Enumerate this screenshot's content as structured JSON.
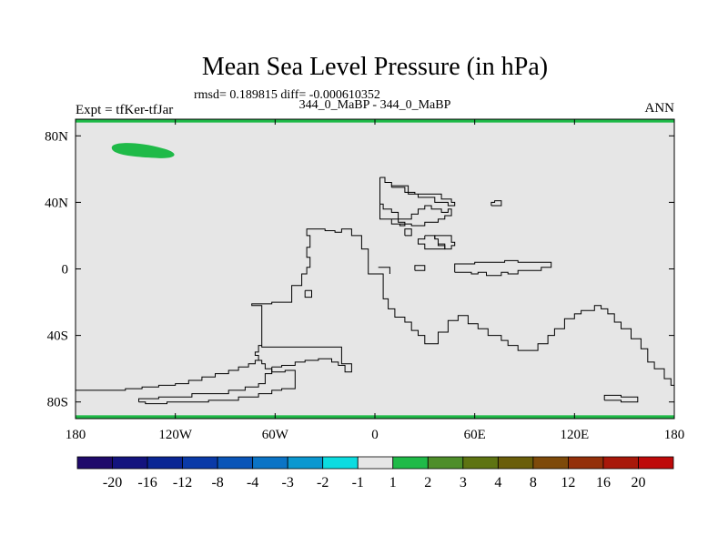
{
  "chart_data": {
    "type": "heatmap",
    "title": "Mean Sea Level Pressure (in hPa)",
    "subtitle": "rmsd= 0.189815 diff= -0.000610352",
    "left_label": "Expt = tfKer-tfJar",
    "center_label": "344_0_MaBP - 344_0_MaBP",
    "right_label": "ANN",
    "xlim": [
      -180,
      180
    ],
    "ylim": [
      -90,
      90
    ],
    "x_ticks": [
      {
        "value": -180,
        "label": "180"
      },
      {
        "value": -120,
        "label": "120W"
      },
      {
        "value": -60,
        "label": "60W"
      },
      {
        "value": 0,
        "label": "0"
      },
      {
        "value": 60,
        "label": "60E"
      },
      {
        "value": 120,
        "label": "120E"
      },
      {
        "value": 180,
        "label": "180"
      }
    ],
    "y_ticks": [
      {
        "value": 80,
        "label": "80N"
      },
      {
        "value": 40,
        "label": "40N"
      },
      {
        "value": 0,
        "label": "0"
      },
      {
        "value": -40,
        "label": "40S"
      },
      {
        "value": -80,
        "label": "80S"
      }
    ],
    "field_background_color": "#e6e6e6",
    "colorbar": {
      "colors": [
        "#1f0a6b",
        "#13137e",
        "#0a2694",
        "#0a3aa8",
        "#0a55b8",
        "#0b74c6",
        "#0b98d0",
        "#0cdce0",
        "#e6e6e6",
        "#1fba48",
        "#4e8e2a",
        "#5e7412",
        "#6a5e0a",
        "#7e4a0a",
        "#94300a",
        "#a8180a",
        "#be0a0a"
      ],
      "labels": [
        "-20",
        "-16",
        "-12",
        "-8",
        "-4",
        "-3",
        "-2",
        "-1",
        "1",
        "2",
        "3",
        "4",
        "8",
        "12",
        "16",
        "20"
      ]
    },
    "anomalies": [
      {
        "region": "north-pole-band",
        "value_range": "1 to 2",
        "color": "#1fba48",
        "lat_range": [
          88,
          90
        ],
        "lon_range": [
          -180,
          180
        ]
      },
      {
        "region": "arctic-blob",
        "value_range": "1 to 2",
        "color": "#1fba48",
        "lat_center": 71,
        "lon_center": -138
      },
      {
        "region": "south-pole-band",
        "value_range": "1 to 2",
        "color": "#1fba48",
        "lat_range": [
          -90,
          -88
        ],
        "lon_range": [
          -180,
          180
        ]
      }
    ],
    "coastlines": [
      [
        [
          -180,
          -73
        ],
        [
          -150,
          -73
        ],
        [
          -150,
          -72
        ],
        [
          -140,
          -72
        ],
        [
          -140,
          -71
        ],
        [
          -130,
          -71
        ],
        [
          -130,
          -70
        ],
        [
          -120,
          -70
        ],
        [
          -120,
          -69
        ],
        [
          -112,
          -69
        ],
        [
          -112,
          -67
        ],
        [
          -104,
          -67
        ],
        [
          -104,
          -65
        ],
        [
          -96,
          -65
        ],
        [
          -96,
          -63
        ],
        [
          -88,
          -63
        ],
        [
          -88,
          -61
        ],
        [
          -82,
          -61
        ],
        [
          -82,
          -59
        ],
        [
          -76,
          -59
        ],
        [
          -76,
          -57
        ],
        [
          -72,
          -57
        ],
        [
          -72,
          -55
        ],
        [
          -70,
          -55
        ],
        [
          -70,
          -52
        ],
        [
          -72,
          -52
        ],
        [
          -72,
          -50
        ],
        [
          -70,
          -50
        ],
        [
          -70,
          -46
        ],
        [
          -68,
          -46
        ]
      ],
      [
        [
          -142,
          -80
        ],
        [
          -142,
          -78
        ],
        [
          -130,
          -78
        ],
        [
          -130,
          -77
        ],
        [
          -110,
          -77
        ],
        [
          -110,
          -75
        ],
        [
          -88,
          -75
        ],
        [
          -88,
          -73
        ],
        [
          -78,
          -73
        ],
        [
          -78,
          -71
        ],
        [
          -70,
          -71
        ],
        [
          -70,
          -69
        ],
        [
          -66,
          -69
        ],
        [
          -66,
          -63
        ],
        [
          -62,
          -63
        ],
        [
          -62,
          -60
        ],
        [
          -66,
          -60
        ],
        [
          -66,
          -57
        ],
        [
          -68,
          -57
        ],
        [
          -68,
          -55
        ],
        [
          -70,
          -55
        ]
      ],
      [
        [
          -142,
          -80
        ],
        [
          -138,
          -80
        ],
        [
          -138,
          -81
        ],
        [
          -125,
          -81
        ],
        [
          -125,
          -80
        ],
        [
          -100,
          -80
        ],
        [
          -100,
          -79
        ],
        [
          -82,
          -79
        ],
        [
          -82,
          -77
        ],
        [
          -70,
          -77
        ],
        [
          -70,
          -75
        ],
        [
          -62,
          -75
        ],
        [
          -62,
          -73
        ],
        [
          -56,
          -73
        ],
        [
          -56,
          -72
        ],
        [
          -48,
          -72
        ],
        [
          -48,
          -61
        ],
        [
          -54,
          -61
        ],
        [
          -54,
          -62
        ],
        [
          -62,
          -62
        ],
        [
          -62,
          -59
        ]
      ],
      [
        [
          -62,
          -59
        ],
        [
          -56,
          -59
        ],
        [
          -56,
          -58
        ],
        [
          -48,
          -58
        ],
        [
          -48,
          -56
        ],
        [
          -42,
          -56
        ],
        [
          -42,
          -55
        ],
        [
          -34,
          -55
        ],
        [
          -34,
          -54
        ],
        [
          -26,
          -54
        ],
        [
          -26,
          -56
        ],
        [
          -22,
          -56
        ],
        [
          -22,
          -58
        ],
        [
          -18,
          -58
        ],
        [
          -18,
          -62
        ],
        [
          -14,
          -62
        ],
        [
          -14,
          -57
        ],
        [
          -20,
          -57
        ],
        [
          -20,
          -47
        ],
        [
          -68,
          -47
        ],
        [
          -68,
          -22
        ],
        [
          -74,
          -22
        ],
        [
          -74,
          -21
        ],
        [
          -62,
          -21
        ],
        [
          -62,
          -20
        ],
        [
          -50,
          -20
        ],
        [
          -50,
          -10
        ],
        [
          -44,
          -10
        ],
        [
          -44,
          -3
        ],
        [
          -41,
          -3
        ],
        [
          -41,
          1
        ],
        [
          -39,
          1
        ],
        [
          -39,
          7
        ],
        [
          -41,
          7
        ],
        [
          -41,
          13
        ],
        [
          -39,
          13
        ],
        [
          -39,
          20
        ],
        [
          -41,
          20
        ],
        [
          -41,
          24
        ],
        [
          -30,
          24
        ],
        [
          -30,
          23
        ],
        [
          -24,
          23
        ],
        [
          -24,
          22
        ],
        [
          -20,
          22
        ],
        [
          -20,
          24
        ],
        [
          -14,
          24
        ],
        [
          -14,
          20
        ],
        [
          -8,
          20
        ],
        [
          -8,
          12
        ],
        [
          -4,
          12
        ],
        [
          -4,
          -3
        ],
        [
          5,
          -3
        ],
        [
          5,
          -18
        ],
        [
          8,
          -18
        ],
        [
          8,
          -24
        ],
        [
          12,
          -24
        ],
        [
          12,
          -29
        ],
        [
          18,
          -29
        ],
        [
          18,
          -32
        ],
        [
          22,
          -32
        ],
        [
          22,
          -37
        ],
        [
          26,
          -37
        ],
        [
          26,
          -40
        ],
        [
          30,
          -40
        ],
        [
          30,
          -45
        ],
        [
          38,
          -45
        ],
        [
          38,
          -38
        ],
        [
          44,
          -38
        ],
        [
          44,
          -31
        ],
        [
          50,
          -31
        ],
        [
          50,
          -28
        ],
        [
          56,
          -28
        ],
        [
          56,
          -33
        ],
        [
          62,
          -33
        ],
        [
          62,
          -36
        ],
        [
          68,
          -36
        ],
        [
          68,
          -40
        ],
        [
          76,
          -40
        ],
        [
          76,
          -43
        ],
        [
          80,
          -43
        ],
        [
          80,
          -46
        ],
        [
          86,
          -46
        ],
        [
          86,
          -49
        ],
        [
          98,
          -49
        ],
        [
          98,
          -45
        ],
        [
          104,
          -45
        ],
        [
          104,
          -40
        ],
        [
          108,
          -40
        ],
        [
          108,
          -36
        ],
        [
          114,
          -36
        ],
        [
          114,
          -30
        ],
        [
          120,
          -30
        ],
        [
          120,
          -27
        ],
        [
          124,
          -27
        ],
        [
          124,
          -25
        ],
        [
          132,
          -25
        ],
        [
          132,
          -22
        ],
        [
          136,
          -22
        ],
        [
          136,
          -24
        ],
        [
          140,
          -24
        ],
        [
          140,
          -27
        ],
        [
          144,
          -27
        ],
        [
          144,
          -32
        ],
        [
          148,
          -32
        ],
        [
          148,
          -36
        ],
        [
          154,
          -36
        ],
        [
          154,
          -42
        ],
        [
          160,
          -42
        ],
        [
          160,
          -48
        ],
        [
          164,
          -48
        ],
        [
          164,
          -56
        ],
        [
          168,
          -56
        ],
        [
          168,
          -60
        ],
        [
          174,
          -60
        ],
        [
          174,
          -66
        ],
        [
          178,
          -66
        ],
        [
          178,
          -70
        ],
        [
          180,
          -70
        ]
      ],
      [
        [
          2,
          1
        ],
        [
          9,
          1
        ],
        [
          9,
          -3
        ]
      ],
      [
        [
          48,
          -2
        ],
        [
          48,
          3
        ],
        [
          60,
          3
        ],
        [
          60,
          4
        ],
        [
          78,
          4
        ],
        [
          78,
          5
        ],
        [
          86,
          5
        ],
        [
          86,
          4
        ],
        [
          106,
          4
        ],
        [
          106,
          1
        ],
        [
          100,
          1
        ],
        [
          100,
          -1
        ],
        [
          86,
          -1
        ],
        [
          86,
          -3
        ],
        [
          80,
          -3
        ],
        [
          80,
          -2
        ],
        [
          76,
          -2
        ],
        [
          76,
          -4
        ],
        [
          67,
          -4
        ],
        [
          67,
          -2
        ],
        [
          62,
          -2
        ],
        [
          62,
          -3
        ],
        [
          58,
          -3
        ],
        [
          58,
          -2
        ],
        [
          48,
          -2
        ]
      ],
      [
        [
          3,
          39
        ],
        [
          5,
          39
        ],
        [
          5,
          36
        ],
        [
          10,
          36
        ],
        [
          10,
          34
        ],
        [
          14,
          34
        ],
        [
          14,
          30
        ],
        [
          22,
          30
        ],
        [
          22,
          33
        ],
        [
          26,
          33
        ],
        [
          26,
          36
        ],
        [
          30,
          36
        ],
        [
          30,
          38
        ],
        [
          34,
          38
        ],
        [
          34,
          36
        ],
        [
          40,
          36
        ],
        [
          40,
          34
        ],
        [
          44,
          34
        ],
        [
          44,
          36
        ],
        [
          46,
          36
        ],
        [
          46,
          32
        ],
        [
          42,
          32
        ],
        [
          42,
          30
        ],
        [
          38,
          30
        ],
        [
          38,
          28
        ],
        [
          30,
          28
        ],
        [
          30,
          26
        ],
        [
          22,
          26
        ],
        [
          22,
          27
        ],
        [
          10,
          27
        ],
        [
          10,
          30
        ],
        [
          14,
          30
        ],
        [
          14,
          28
        ],
        [
          18,
          28
        ],
        [
          18,
          26
        ],
        [
          15,
          26
        ],
        [
          15,
          27
        ],
        [
          10,
          27
        ],
        [
          10,
          30
        ],
        [
          3,
          30
        ],
        [
          3,
          39
        ]
      ],
      [
        [
          10,
          49
        ],
        [
          10,
          50
        ],
        [
          20,
          50
        ],
        [
          20,
          45
        ],
        [
          26,
          45
        ],
        [
          26,
          43
        ],
        [
          36,
          43
        ],
        [
          36,
          40
        ],
        [
          44,
          40
        ],
        [
          44,
          38
        ],
        [
          48,
          38
        ],
        [
          48,
          40
        ],
        [
          46,
          40
        ],
        [
          46,
          42
        ],
        [
          40,
          42
        ],
        [
          40,
          45
        ],
        [
          24,
          45
        ],
        [
          24,
          46
        ],
        [
          18,
          46
        ],
        [
          18,
          49
        ],
        [
          10,
          49
        ]
      ],
      [
        [
          3,
          55
        ],
        [
          6,
          55
        ],
        [
          6,
          52
        ],
        [
          10,
          52
        ],
        [
          10,
          50
        ]
      ],
      [
        [
          3,
          39
        ],
        [
          3,
          55
        ]
      ],
      [
        [
          30,
          20
        ],
        [
          36,
          20
        ],
        [
          36,
          18
        ],
        [
          38,
          18
        ],
        [
          38,
          15
        ],
        [
          42,
          15
        ],
        [
          42,
          12
        ],
        [
          30,
          12
        ],
        [
          30,
          15
        ],
        [
          26,
          15
        ],
        [
          26,
          18
        ],
        [
          30,
          18
        ],
        [
          30,
          20
        ]
      ],
      [
        [
          36,
          18
        ],
        [
          36,
          20
        ],
        [
          46,
          20
        ],
        [
          46,
          16
        ],
        [
          48,
          16
        ],
        [
          48,
          14
        ],
        [
          46,
          14
        ],
        [
          46,
          12
        ],
        [
          42,
          12
        ],
        [
          42,
          14
        ],
        [
          38,
          14
        ],
        [
          38,
          18
        ]
      ],
      [
        [
          18,
          20
        ],
        [
          18,
          24
        ],
        [
          22,
          24
        ],
        [
          22,
          20
        ],
        [
          18,
          20
        ]
      ],
      [
        [
          70,
          38
        ],
        [
          70,
          40
        ],
        [
          72,
          40
        ],
        [
          72,
          41
        ],
        [
          76,
          41
        ],
        [
          76,
          38
        ],
        [
          70,
          38
        ]
      ],
      [
        [
          -42,
          -13
        ],
        [
          -42,
          -17
        ],
        [
          -38,
          -17
        ],
        [
          -38,
          -13
        ],
        [
          -42,
          -13
        ]
      ],
      [
        [
          24,
          -1
        ],
        [
          24,
          2
        ],
        [
          30,
          2
        ],
        [
          30,
          -1
        ],
        [
          24,
          -1
        ]
      ],
      [
        [
          138,
          -79
        ],
        [
          138,
          -76
        ],
        [
          148,
          -76
        ],
        [
          148,
          -77
        ],
        [
          158,
          -77
        ],
        [
          158,
          -80
        ],
        [
          148,
          -80
        ],
        [
          148,
          -79
        ],
        [
          138,
          -79
        ]
      ]
    ]
  }
}
